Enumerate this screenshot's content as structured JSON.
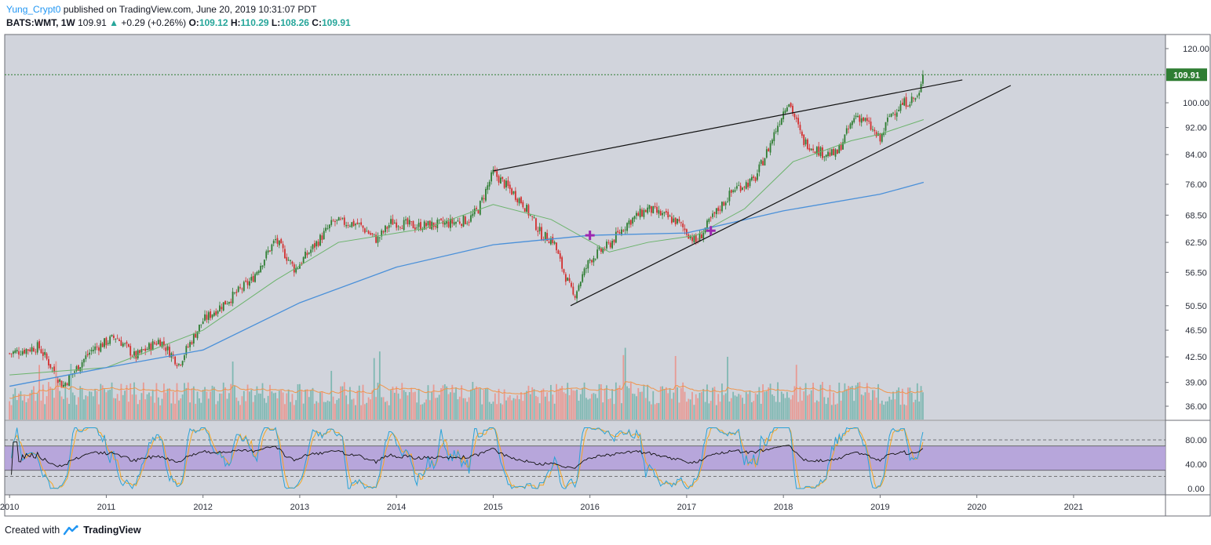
{
  "header": {
    "author": "Yung_Crypt0",
    "published": "published on TradingView.com, June 20, 2019 10:31:07 PDT",
    "symbol": "BATS:WMT, 1W",
    "last": "109.91",
    "change_arrow": "▲",
    "change": "+0.29 (+0.26%)",
    "o_label": "O:",
    "o_value": "109.12",
    "h_label": "H:",
    "h_value": "110.29",
    "l_label": "L:",
    "l_value": "108.26",
    "c_label": "C:",
    "c_value": "109.91"
  },
  "footer": {
    "created_with": "Created with",
    "brand": "TradingView"
  },
  "colors": {
    "background": "#d1d4dc",
    "up": "#2e7d32",
    "down": "#d32f2f",
    "ma_green": "#6bb36b",
    "ma_blue": "#4a90d9",
    "vol_up": "#7fb8b2",
    "vol_down": "#e89a94",
    "vol_ma": "#f0944a",
    "rsi_band": "#b39ddb",
    "last_price": "#2e7d32"
  },
  "chart_data": {
    "type": "candlestick",
    "title": "BATS:WMT, 1W",
    "price_axis": {
      "ticks": [
        120.0,
        100.0,
        92.0,
        84.0,
        76.0,
        68.5,
        62.5,
        56.5,
        50.5,
        46.5,
        42.5,
        39.0,
        36.0
      ],
      "tick_labels": [
        "120.00",
        "100.00",
        "92.00",
        "84.00",
        "76.00",
        "68.50",
        "62.50",
        "56.50",
        "50.50",
        "46.50",
        "42.50",
        "39.00",
        "36.00"
      ],
      "scale": "log",
      "last_price_label": "109.91"
    },
    "time_axis": {
      "labels": [
        "2010",
        "2011",
        "2012",
        "2013",
        "2014",
        "2015",
        "2016",
        "2017",
        "2018",
        "2019",
        "2020",
        "2021"
      ],
      "start_year": 2009.95,
      "end_year": 2021.95
    },
    "price_path": [
      [
        2010.0,
        43.0
      ],
      [
        2010.3,
        44.0
      ],
      [
        2010.55,
        38.5
      ],
      [
        2010.85,
        43.5
      ],
      [
        2011.1,
        45.5
      ],
      [
        2011.3,
        42.5
      ],
      [
        2011.55,
        45.0
      ],
      [
        2011.75,
        41.5
      ],
      [
        2012.0,
        48.0
      ],
      [
        2012.3,
        52.0
      ],
      [
        2012.5,
        55.0
      ],
      [
        2012.75,
        63.0
      ],
      [
        2012.95,
        57.0
      ],
      [
        2013.2,
        63.0
      ],
      [
        2013.35,
        67.0
      ],
      [
        2013.6,
        66.5
      ],
      [
        2013.8,
        63.0
      ],
      [
        2013.95,
        67.0
      ],
      [
        2014.2,
        66.0
      ],
      [
        2014.5,
        66.5
      ],
      [
        2014.75,
        67.5
      ],
      [
        2014.85,
        70.0
      ],
      [
        2015.0,
        79.0
      ],
      [
        2015.3,
        71.5
      ],
      [
        2015.5,
        64.0
      ],
      [
        2015.62,
        63.0
      ],
      [
        2015.7,
        58.0
      ],
      [
        2015.83,
        52.0
      ],
      [
        2016.0,
        59.0
      ],
      [
        2016.2,
        62.0
      ],
      [
        2016.4,
        67.0
      ],
      [
        2016.6,
        70.0
      ],
      [
        2016.9,
        67.0
      ],
      [
        2017.1,
        62.5
      ],
      [
        2017.3,
        69.0
      ],
      [
        2017.5,
        75.0
      ],
      [
        2017.7,
        77.0
      ],
      [
        2017.85,
        86.0
      ],
      [
        2018.05,
        101.0
      ],
      [
        2018.2,
        88.0
      ],
      [
        2018.4,
        84.5
      ],
      [
        2018.55,
        84.0
      ],
      [
        2018.75,
        96.0
      ],
      [
        2018.85,
        94.0
      ],
      [
        2019.0,
        88.0
      ],
      [
        2019.1,
        96.0
      ],
      [
        2019.25,
        100.0
      ],
      [
        2019.4,
        102.0
      ],
      [
        2019.45,
        109.9
      ]
    ],
    "overlays": [
      {
        "name": "MA (short)",
        "points": [
          [
            2010.0,
            40.0
          ],
          [
            2011.0,
            41.0
          ],
          [
            2012.0,
            46.5
          ],
          [
            2012.75,
            55.0
          ],
          [
            2013.4,
            62.5
          ],
          [
            2014.3,
            65.5
          ],
          [
            2015.0,
            71.0
          ],
          [
            2015.6,
            67.5
          ],
          [
            2016.2,
            60.5
          ],
          [
            2016.6,
            62.5
          ],
          [
            2017.1,
            64.0
          ],
          [
            2017.6,
            70.0
          ],
          [
            2018.1,
            82.0
          ],
          [
            2018.7,
            88.0
          ],
          [
            2019.0,
            90.0
          ],
          [
            2019.45,
            94.5
          ]
        ]
      },
      {
        "name": "MA (long)",
        "points": [
          [
            2010.0,
            38.5
          ],
          [
            2011.0,
            41.0
          ],
          [
            2012.0,
            43.5
          ],
          [
            2013.0,
            51.0
          ],
          [
            2014.0,
            57.5
          ],
          [
            2015.0,
            62.0
          ],
          [
            2016.0,
            64.0
          ],
          [
            2017.0,
            64.5
          ],
          [
            2018.0,
            69.5
          ],
          [
            2019.0,
            73.5
          ],
          [
            2019.45,
            76.5
          ]
        ]
      }
    ],
    "trendlines": [
      {
        "name": "upper trendline",
        "points": [
          [
            2015.0,
            79.5
          ],
          [
            2019.85,
            108.0
          ]
        ]
      },
      {
        "name": "lower trendline",
        "points": [
          [
            2015.8,
            50.5
          ],
          [
            2020.35,
            106.0
          ]
        ]
      }
    ],
    "markers": [
      {
        "name": "cross marker 2016",
        "x": 2016.0,
        "y": 64.0
      },
      {
        "name": "cross marker 2017",
        "x": 2017.25,
        "y": 65.0
      }
    ],
    "volume": {
      "note": "weekly volume bars with moving average, bottom of price pane"
    },
    "oscillator": {
      "name": "RSI / Stochastic RSI",
      "ticks": [
        80.0,
        40.0,
        0.0
      ],
      "tick_labels": [
        "80.00",
        "40.00",
        "0.00"
      ],
      "overbought": 80,
      "oversold": 20,
      "band_upper": 70,
      "band_lower": 30
    }
  }
}
